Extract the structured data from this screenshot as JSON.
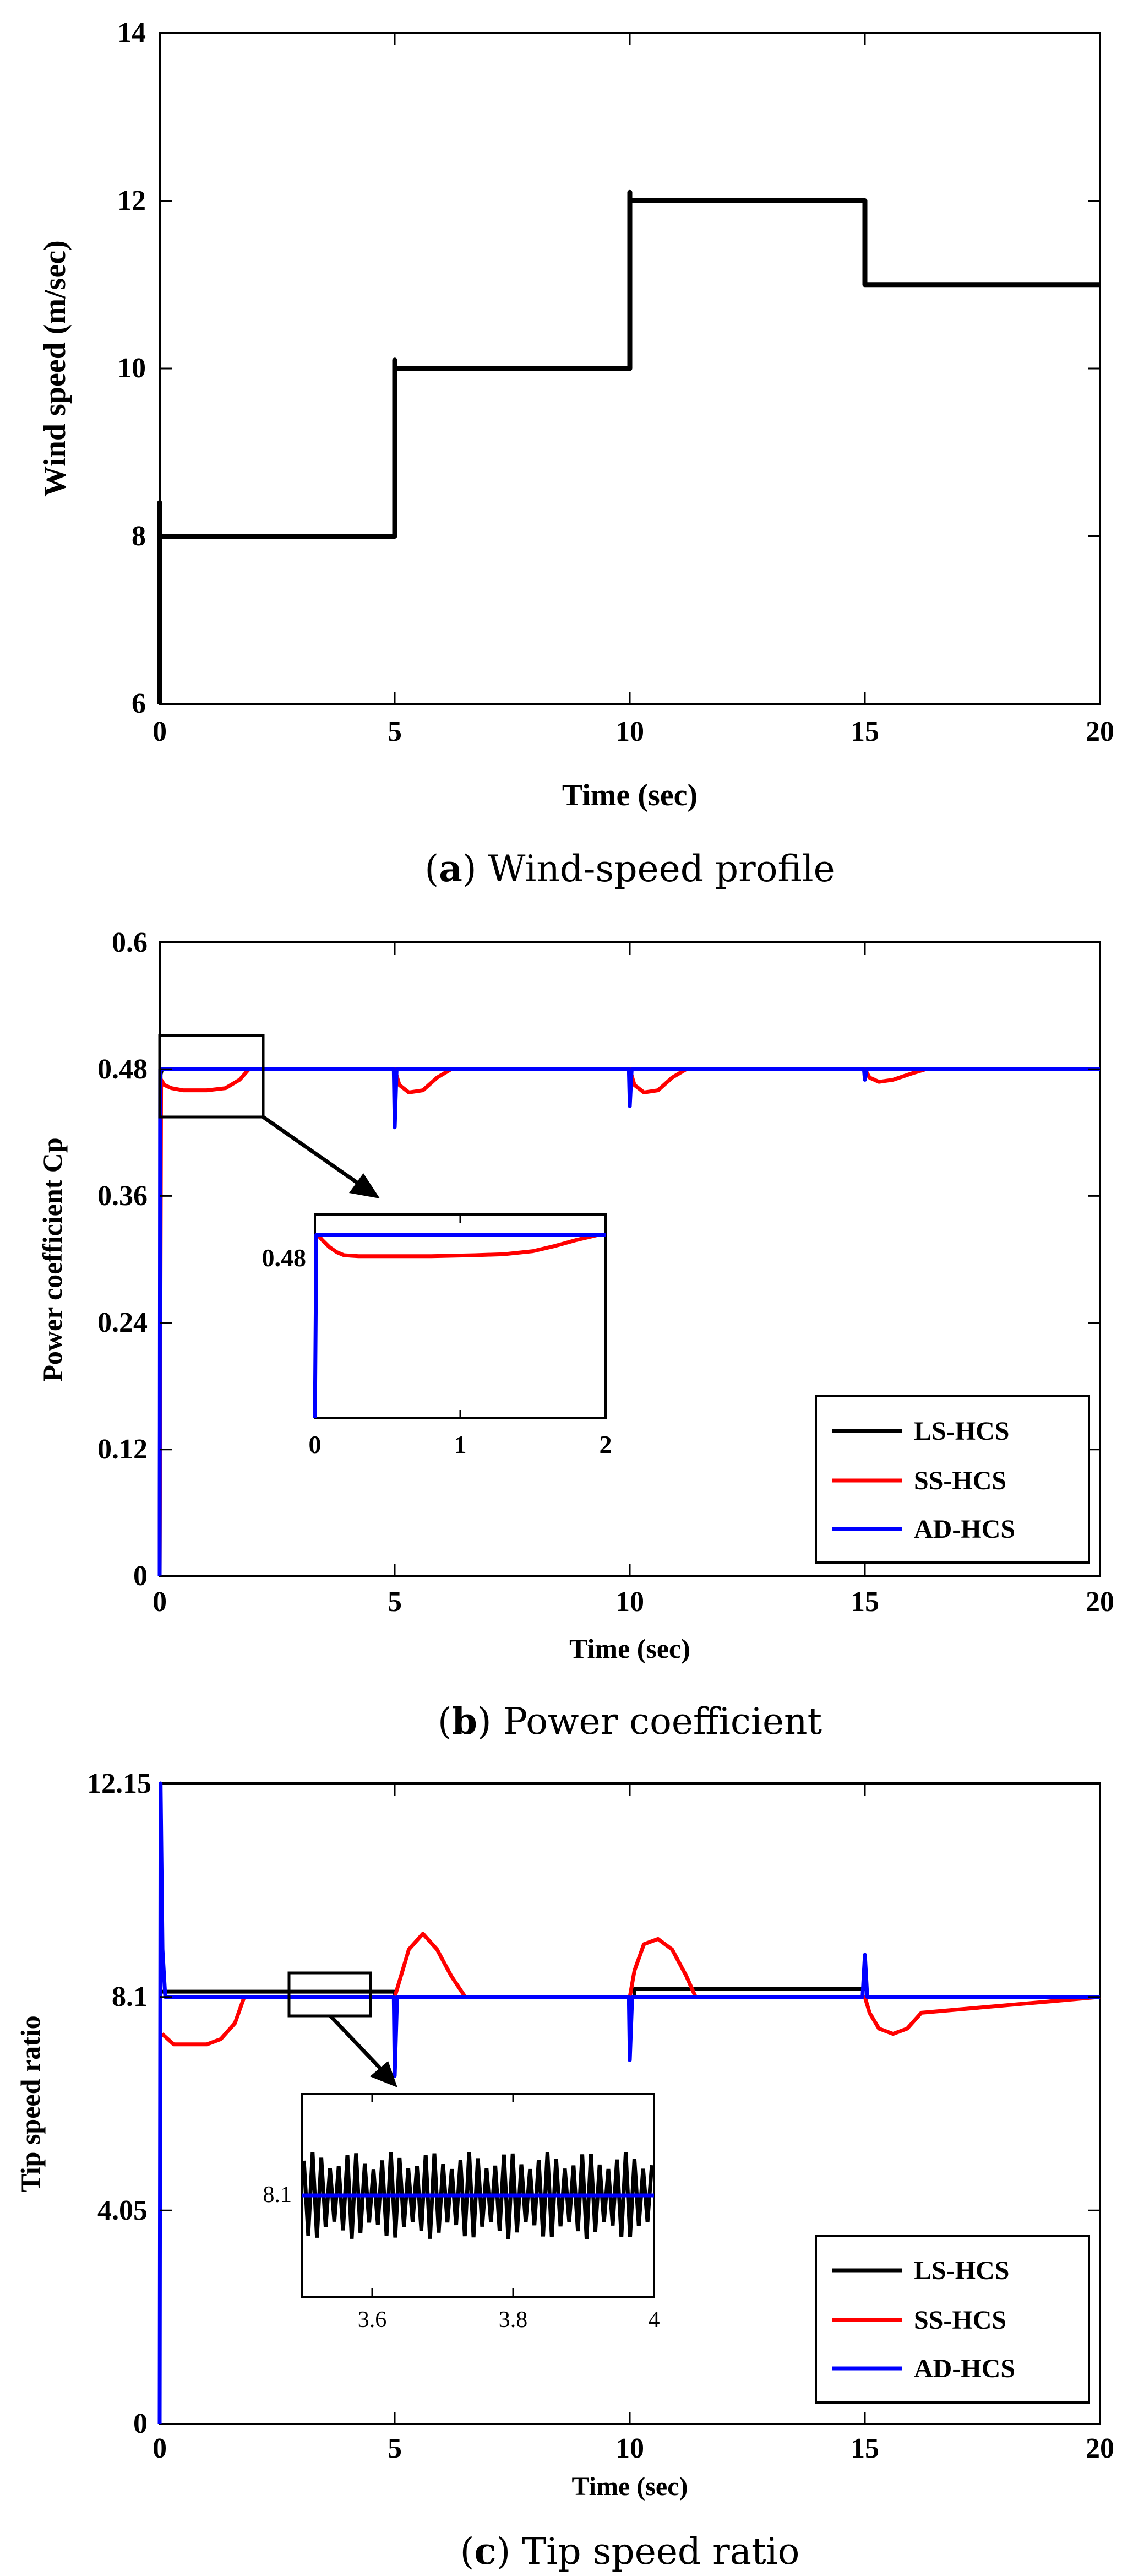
{
  "chart_data": [
    {
      "type": "line",
      "caption_letter": "a",
      "caption_text": "Wind-speed profile",
      "xlabel": "Time (sec)",
      "ylabel": "Wind speed (m/sec)",
      "xlim": [
        0,
        20
      ],
      "ylim": [
        6,
        14
      ],
      "xticks": [
        "0",
        "5",
        "10",
        "15",
        "20"
      ],
      "yticks": [
        "6",
        "8",
        "10",
        "12",
        "14"
      ],
      "series": [
        {
          "name": "Wind speed",
          "color": "#000000",
          "x": [
            0,
            0,
            0,
            5,
            5,
            5,
            5,
            10,
            10,
            10,
            10,
            15,
            15,
            15,
            15,
            20
          ],
          "y": [
            6,
            8.4,
            8,
            8,
            8,
            10.1,
            10,
            10,
            10,
            12.1,
            12,
            12,
            12,
            11,
            11,
            11
          ]
        }
      ]
    },
    {
      "type": "line",
      "caption_letter": "b",
      "caption_text": "Power coefficient",
      "xlabel": "Time (sec)",
      "ylabel": "Power coefficient Cp",
      "xlim": [
        0,
        20
      ],
      "ylim": [
        0,
        0.6
      ],
      "xticks": [
        "0",
        "5",
        "10",
        "15",
        "20"
      ],
      "yticks": [
        "0",
        "0.12",
        "0.24",
        "0.36",
        "0.48",
        "0.6"
      ],
      "legend": [
        "LS-HCS",
        "SS-HCS",
        "AD-HCS"
      ],
      "series": [
        {
          "name": "LS-HCS",
          "color": "#000000",
          "x": [
            0,
            0.02,
            0.05,
            20
          ],
          "y": [
            0,
            0.475,
            0.48,
            0.48
          ]
        },
        {
          "name": "SS-HCS",
          "color": "#ff0000",
          "x": [
            0,
            0.03,
            0.1,
            0.25,
            0.5,
            1.0,
            1.4,
            1.7,
            1.9,
            5.0,
            5.1,
            5.3,
            5.6,
            5.9,
            6.2,
            10.0,
            10.1,
            10.3,
            10.6,
            10.9,
            11.2,
            15.0,
            15.1,
            15.3,
            15.6,
            16.0,
            16.3,
            20
          ],
          "y": [
            0,
            0.47,
            0.465,
            0.462,
            0.46,
            0.46,
            0.462,
            0.47,
            0.48,
            0.48,
            0.465,
            0.458,
            0.46,
            0.472,
            0.48,
            0.48,
            0.465,
            0.458,
            0.46,
            0.472,
            0.48,
            0.48,
            0.472,
            0.468,
            0.47,
            0.476,
            0.48,
            0.48
          ]
        },
        {
          "name": "AD-HCS",
          "color": "#0000ff",
          "x": [
            0,
            0.01,
            0.03,
            4.98,
            5.0,
            5.04,
            5.08,
            9.98,
            10.0,
            10.04,
            10.08,
            14.98,
            15.0,
            15.04,
            15.08,
            20
          ],
          "y": [
            0,
            0.48,
            0.48,
            0.48,
            0.425,
            0.48,
            0.48,
            0.48,
            0.445,
            0.48,
            0.48,
            0.48,
            0.47,
            0.48,
            0.48,
            0.48
          ]
        }
      ],
      "inset": {
        "xlim": [
          0,
          2
        ],
        "xticks": [
          "0",
          "1",
          "2"
        ],
        "ytick": "0.48",
        "series": [
          {
            "name": "SS-HCS",
            "color": "#ff0000",
            "x": [
              0.02,
              0.05,
              0.1,
              0.15,
              0.2,
              0.3,
              0.5,
              0.8,
              1.1,
              1.3,
              1.5,
              1.65,
              1.8,
              1.95,
              2.0
            ],
            "y": [
              0.48,
              0.475,
              0.468,
              0.463,
              0.46,
              0.459,
              0.459,
              0.459,
              0.46,
              0.461,
              0.464,
              0.469,
              0.475,
              0.48,
              0.48
            ]
          },
          {
            "name": "AD-HCS",
            "color": "#0000ff",
            "x": [
              0,
              0.01,
              0.03,
              2.0
            ],
            "y": [
              0.3,
              0.48,
              0.48,
              0.48
            ]
          }
        ]
      }
    },
    {
      "type": "line",
      "caption_letter": "c",
      "caption_text": "Tip speed ratio",
      "xlabel": "Time (sec)",
      "ylabel": "Tip speed ratio",
      "xlim": [
        0,
        20
      ],
      "ylim": [
        0,
        12.15
      ],
      "xticks": [
        "0",
        "5",
        "10",
        "15",
        "20"
      ],
      "yticks": [
        "0",
        "4.05",
        "8.1",
        "12.15"
      ],
      "legend": [
        "LS-HCS",
        "SS-HCS",
        "AD-HCS"
      ],
      "series": [
        {
          "name": "LS-HCS",
          "color": "#000000",
          "x": [
            0.05,
            5.0,
            5.0,
            10.1,
            10.1,
            15.0
          ],
          "y": [
            8.2,
            8.2,
            8.1,
            8.1,
            8.25,
            8.25
          ]
        },
        {
          "name": "SS-HCS",
          "color": "#ff0000",
          "x": [
            0.05,
            0.3,
            1.0,
            1.3,
            1.6,
            1.8,
            5.0,
            5.1,
            5.3,
            5.6,
            5.9,
            6.2,
            6.5,
            10.0,
            10.1,
            10.3,
            10.6,
            10.9,
            11.2,
            11.4,
            15.0,
            15.1,
            15.3,
            15.6,
            15.9,
            16.2,
            20
          ],
          "y": [
            7.4,
            7.2,
            7.2,
            7.3,
            7.6,
            8.1,
            8.1,
            8.4,
            9.0,
            9.3,
            9.0,
            8.5,
            8.1,
            8.1,
            8.6,
            9.1,
            9.2,
            9.0,
            8.5,
            8.1,
            8.1,
            7.8,
            7.5,
            7.4,
            7.5,
            7.8,
            8.1
          ]
        },
        {
          "name": "AD-HCS",
          "color": "#0000ff",
          "x": [
            0,
            0.02,
            0.06,
            0.12,
            4.98,
            5.0,
            5.05,
            5.1,
            9.98,
            10.0,
            10.05,
            10.1,
            14.95,
            15.0,
            15.05,
            15.1,
            20
          ],
          "y": [
            0,
            12.15,
            9.0,
            8.1,
            8.1,
            6.6,
            8.1,
            8.1,
            8.1,
            6.9,
            8.1,
            8.1,
            8.1,
            8.9,
            8.1,
            8.1,
            8.1
          ]
        }
      ],
      "inset": {
        "xlim": [
          3.5,
          4.0
        ],
        "xticks": [
          "3.6",
          "3.8",
          "4"
        ],
        "ytick": "8.1",
        "oscillation": {
          "center": 8.1,
          "amplitude": 0.3,
          "cycles": 40
        }
      }
    }
  ]
}
